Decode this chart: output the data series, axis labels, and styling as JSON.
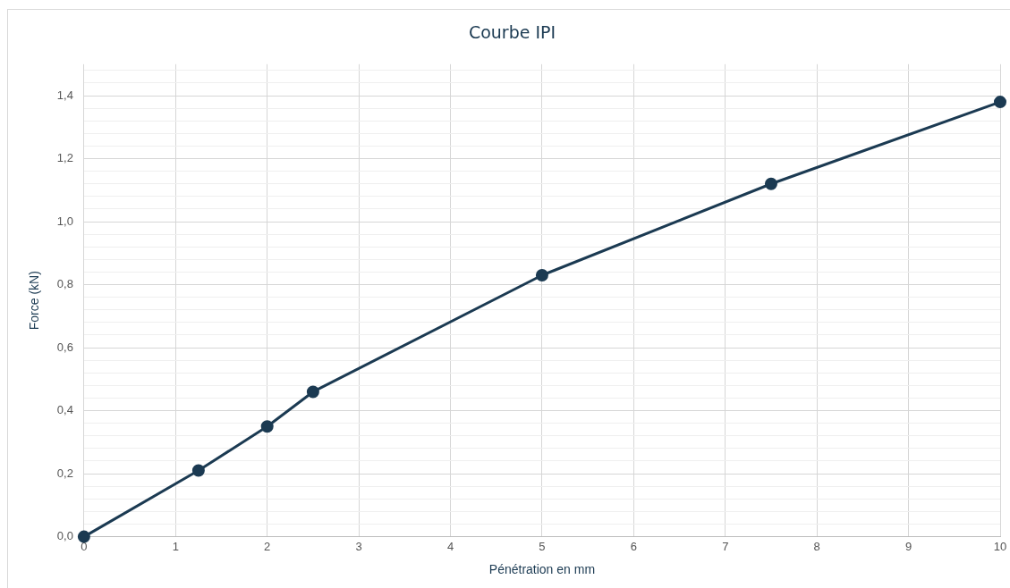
{
  "chart_data": {
    "type": "line",
    "title": "Courbe IPI",
    "xlabel": "Pénétration en mm",
    "ylabel": "Force (kN)",
    "series": [
      {
        "color": "#1b3a52",
        "x": [
          0,
          1.25,
          2,
          2.5,
          5,
          7.5,
          10
        ],
        "values": [
          0,
          0.21,
          0.35,
          0.46,
          0.83,
          1.12,
          1.38
        ]
      }
    ],
    "xlim": [
      0,
      10
    ],
    "xticks": [
      0,
      1,
      2,
      3,
      4,
      5,
      6,
      7,
      8,
      9,
      10
    ],
    "ylim": [
      0,
      1.5
    ],
    "yticks": [
      {
        "value": 0,
        "label": "0,0"
      },
      {
        "value": 0.04,
        "label": null
      },
      {
        "value": 0.08,
        "label": null
      },
      {
        "value": 0.12,
        "label": null
      },
      {
        "value": 0.16,
        "label": null
      },
      {
        "value": 0.2,
        "label": "0,2"
      },
      {
        "value": 0.24,
        "label": null
      },
      {
        "value": 0.28,
        "label": null
      },
      {
        "value": 0.32,
        "label": null
      },
      {
        "value": 0.36,
        "label": null
      },
      {
        "value": 0.4,
        "label": "0,4"
      },
      {
        "value": 0.44,
        "label": null
      },
      {
        "value": 0.48,
        "label": null
      },
      {
        "value": 0.52,
        "label": null
      },
      {
        "value": 0.56,
        "label": null
      },
      {
        "value": 0.6,
        "label": "0,6"
      },
      {
        "value": 0.64,
        "label": null
      },
      {
        "value": 0.68,
        "label": null
      },
      {
        "value": 0.72,
        "label": null
      },
      {
        "value": 0.76,
        "label": null
      },
      {
        "value": 0.8,
        "label": "0,8"
      },
      {
        "value": 0.84,
        "label": null
      },
      {
        "value": 0.88,
        "label": null
      },
      {
        "value": 0.92,
        "label": null
      },
      {
        "value": 0.96,
        "label": null
      },
      {
        "value": 1.0,
        "label": "1,0"
      },
      {
        "value": 1.04,
        "label": null
      },
      {
        "value": 1.08,
        "label": null
      },
      {
        "value": 1.12,
        "label": null
      },
      {
        "value": 1.16,
        "label": null
      },
      {
        "value": 1.2,
        "label": "1,2"
      },
      {
        "value": 1.24,
        "label": null
      },
      {
        "value": 1.28,
        "label": null
      },
      {
        "value": 1.32,
        "label": null
      },
      {
        "value": 1.36,
        "label": null
      },
      {
        "value": 1.4,
        "label": "1,4"
      },
      {
        "value": 1.44,
        "label": null
      },
      {
        "value": 1.48,
        "label": null
      }
    ],
    "grid": true,
    "legend": false,
    "marker": "circle",
    "line_style": "solid"
  }
}
